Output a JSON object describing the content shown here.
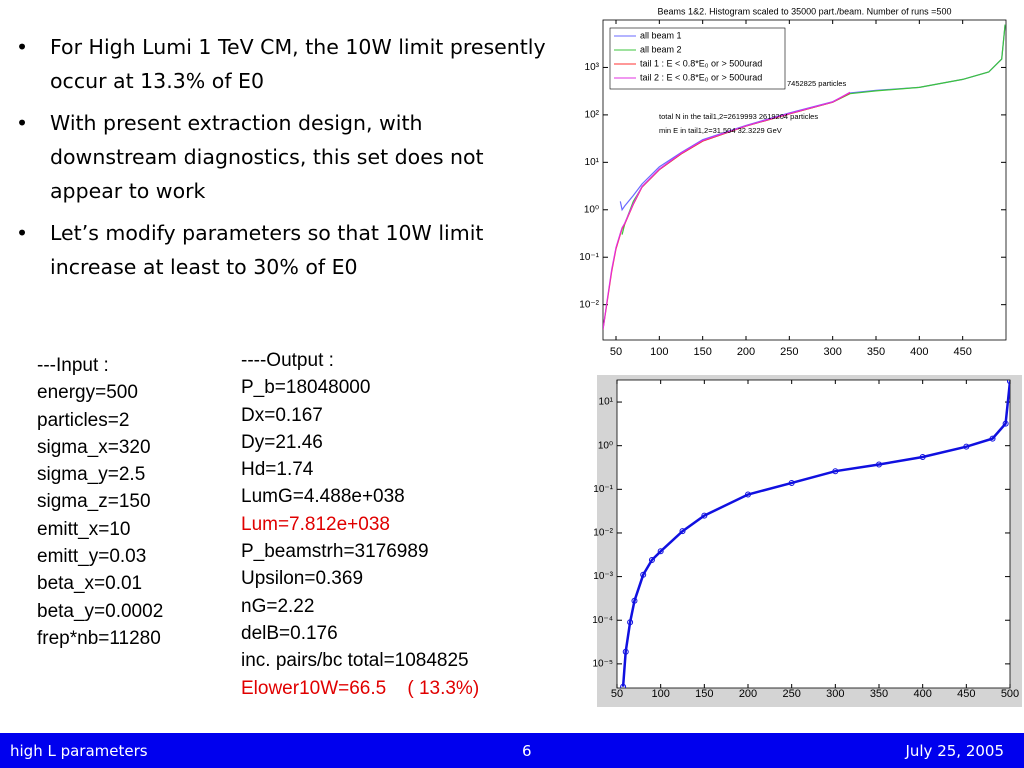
{
  "bullets": [
    "For High Lumi 1 TeV CM, the 10W limit presently occur at 13.3% of E0",
    "With present extraction design, with downstream diagnostics, this set does not appear to work",
    "Let’s modify parameters so that 10W limit increase at least to 30% of E0"
  ],
  "input": [
    "---Input :",
    "energy=500",
    "particles=2",
    "sigma_x=320",
    "sigma_y=2.5",
    "sigma_z=150",
    "emitt_x=10",
    "emitt_y=0.03",
    "beta_x=0.01",
    "beta_y=0.0002",
    "frep*nb=11280"
  ],
  "output": [
    "----Output :",
    "P_b=18048000",
    "Dx=0.167",
    "Dy=21.46",
    "Hd=1.74",
    "LumG=4.488e+038",
    "Lum=7.812e+038",
    "P_beamstrh=3176989",
    "Upsilon=0.369",
    "nG=2.22",
    "delB=0.176",
    "inc. pairs/bc total=1084825",
    "Elower10W=66.5    ( 13.3%)"
  ],
  "footer": {
    "left": "high L parameters",
    "page": "6",
    "date": "July 25, 2005"
  },
  "chart_data": [
    {
      "type": "line",
      "title": "Beams 1&2. Histogram scaled to 35000 part./beam. Number of runs =500",
      "log_y": true,
      "legend": "upper left",
      "x": [
        35,
        40,
        45,
        50,
        55,
        57,
        60,
        70,
        80,
        100,
        125,
        150,
        200,
        250,
        300,
        320,
        350,
        400,
        450,
        480,
        495,
        499
      ],
      "series": [
        {
          "name": "all beam 1",
          "color": "#6a6aff",
          "values": [
            null,
            null,
            null,
            null,
            1.5,
            1.0,
            1.2,
            2,
            3.5,
            8,
            16,
            30,
            60,
            110,
            190,
            290,
            330,
            380,
            560,
            800,
            1500,
            8000
          ]
        },
        {
          "name": "all beam 2",
          "color": "#3cc43c",
          "values": [
            null,
            null,
            null,
            null,
            null,
            0.3,
            0.5,
            1.5,
            3,
            7,
            15,
            28,
            58,
            105,
            185,
            280,
            320,
            380,
            560,
            800,
            1500,
            8000
          ]
        },
        {
          "name": "tail 1 : E < 0.8*E₀ or > 500urad",
          "color": "#ff3030",
          "values": [
            0.003,
            0.012,
            0.05,
            0.15,
            0.3,
            0.4,
            0.5,
            1.3,
            3,
            7,
            15,
            28,
            58,
            105,
            185,
            290,
            null,
            null,
            null,
            null,
            null,
            null
          ]
        },
        {
          "name": "tail 2 : E < 0.8*E₀ or > 500urad",
          "color": "#e030e0",
          "values": [
            0.003,
            0.013,
            0.055,
            0.16,
            0.32,
            0.42,
            0.52,
            1.35,
            3.1,
            7.2,
            15.5,
            29,
            59,
            107,
            188,
            300,
            null,
            null,
            null,
            null,
            null,
            null
          ]
        }
      ],
      "annotations": [
        "7452825 particles",
        "total N in the tail1,2=2619993 2619204 particles",
        "min E in tail1,2=31.504 32.3229 GeV"
      ],
      "xlim": [
        35,
        500
      ],
      "xticks": [
        50,
        100,
        150,
        200,
        250,
        300,
        350,
        400,
        450
      ],
      "ylim": [
        0.0018,
        10000
      ],
      "yticks": [
        {
          "value": 0.01,
          "label": "10⁻²"
        },
        {
          "value": 0.1,
          "label": "10⁻¹"
        },
        {
          "value": 1,
          "label": "10⁰"
        },
        {
          "value": 10,
          "label": "10¹"
        },
        {
          "value": 100,
          "label": "10²"
        },
        {
          "value": 1000,
          "label": "10³"
        }
      ]
    },
    {
      "type": "line",
      "log_y": true,
      "marker": "o",
      "color": "#1010e0",
      "x": [
        57,
        60,
        65,
        70,
        80,
        90,
        100,
        125,
        150,
        200,
        250,
        300,
        350,
        400,
        450,
        480,
        495,
        500
      ],
      "values": [
        3e-06,
        1.9e-05,
        9e-05,
        0.00028,
        0.0011,
        0.0024,
        0.0038,
        0.011,
        0.025,
        0.076,
        0.14,
        0.26,
        0.37,
        0.55,
        0.95,
        1.45,
        3.2,
        30
      ],
      "xlim": [
        50,
        500
      ],
      "xticks": [
        50,
        100,
        150,
        200,
        250,
        300,
        350,
        400,
        450,
        500
      ],
      "ylim": [
        2.8e-06,
        32
      ],
      "yticks": [
        {
          "value": 1e-05,
          "label": "10⁻⁵"
        },
        {
          "value": 0.0001,
          "label": "10⁻⁴"
        },
        {
          "value": 0.001,
          "label": "10⁻³"
        },
        {
          "value": 0.01,
          "label": "10⁻²"
        },
        {
          "value": 0.1,
          "label": "10⁻¹"
        },
        {
          "value": 1,
          "label": "10⁰"
        },
        {
          "value": 10,
          "label": "10¹"
        }
      ]
    }
  ]
}
